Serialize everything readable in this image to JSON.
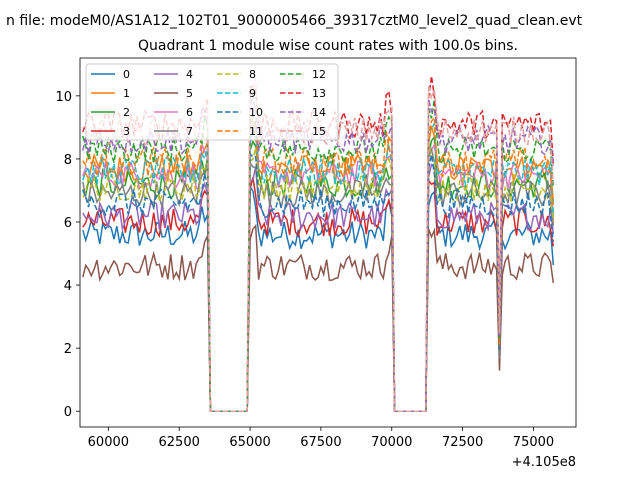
{
  "suptitle": "n file: modeM0/AS1A12_102T01_9000005466_39317cztM0_level2_quad_clean.evt",
  "chart_data": {
    "type": "line",
    "title": "Quadrant 1 module wise count rates with 100.0s bins.",
    "xlabel": "",
    "ylabel": "",
    "x_offset_label": "+4.105e8",
    "xlim": [
      59000,
      76500
    ],
    "ylim": [
      -0.5,
      11.2
    ],
    "xticks": [
      60000,
      62500,
      65000,
      67500,
      70000,
      72500,
      75000
    ],
    "xtick_labels": [
      "60000",
      "62500",
      "65000",
      "67500",
      "70000",
      "72500",
      "75000"
    ],
    "yticks": [
      0,
      2,
      4,
      6,
      8,
      10
    ],
    "ytick_labels": [
      "0",
      "2",
      "4",
      "6",
      "8",
      "10"
    ],
    "gaps": [
      [
        63500,
        65000
      ],
      [
        70000,
        71300
      ]
    ],
    "bin_seconds": 100,
    "legend_position": "upper-left",
    "series": [
      {
        "name": "0",
        "color": "#1f77b4",
        "dash": "solid",
        "level": 5.6
      },
      {
        "name": "1",
        "color": "#ff7f0e",
        "dash": "solid",
        "level": 7.7
      },
      {
        "name": "2",
        "color": "#2ca02c",
        "dash": "solid",
        "level": 7.2
      },
      {
        "name": "3",
        "color": "#d62728",
        "dash": "solid",
        "level": 6.0
      },
      {
        "name": "4",
        "color": "#9467bd",
        "dash": "solid",
        "level": 6.2
      },
      {
        "name": "5",
        "color": "#8c564b",
        "dash": "solid",
        "level": 4.6
      },
      {
        "name": "6",
        "color": "#e377c2",
        "dash": "solid",
        "level": 7.5
      },
      {
        "name": "7",
        "color": "#7f7f7f",
        "dash": "solid",
        "level": 6.9
      },
      {
        "name": "8",
        "color": "#bcbd22",
        "dash": "dashed",
        "level": 7.1
      },
      {
        "name": "9",
        "color": "#17becf",
        "dash": "dashed",
        "level": 7.6
      },
      {
        "name": "10",
        "color": "#1f77b4",
        "dash": "dashed",
        "level": 6.6
      },
      {
        "name": "11",
        "color": "#ff7f0e",
        "dash": "dashed",
        "level": 7.9
      },
      {
        "name": "12",
        "color": "#2ca02c",
        "dash": "dashed",
        "level": 8.3
      },
      {
        "name": "13",
        "color": "#d62728",
        "dash": "dashed",
        "level": 9.1
      },
      {
        "name": "14",
        "color": "#9467bd",
        "dash": "dashed",
        "level": 8.6
      },
      {
        "name": "15",
        "color": "#e5a0a0",
        "dash": "dashed",
        "level": 8.9
      }
    ]
  }
}
